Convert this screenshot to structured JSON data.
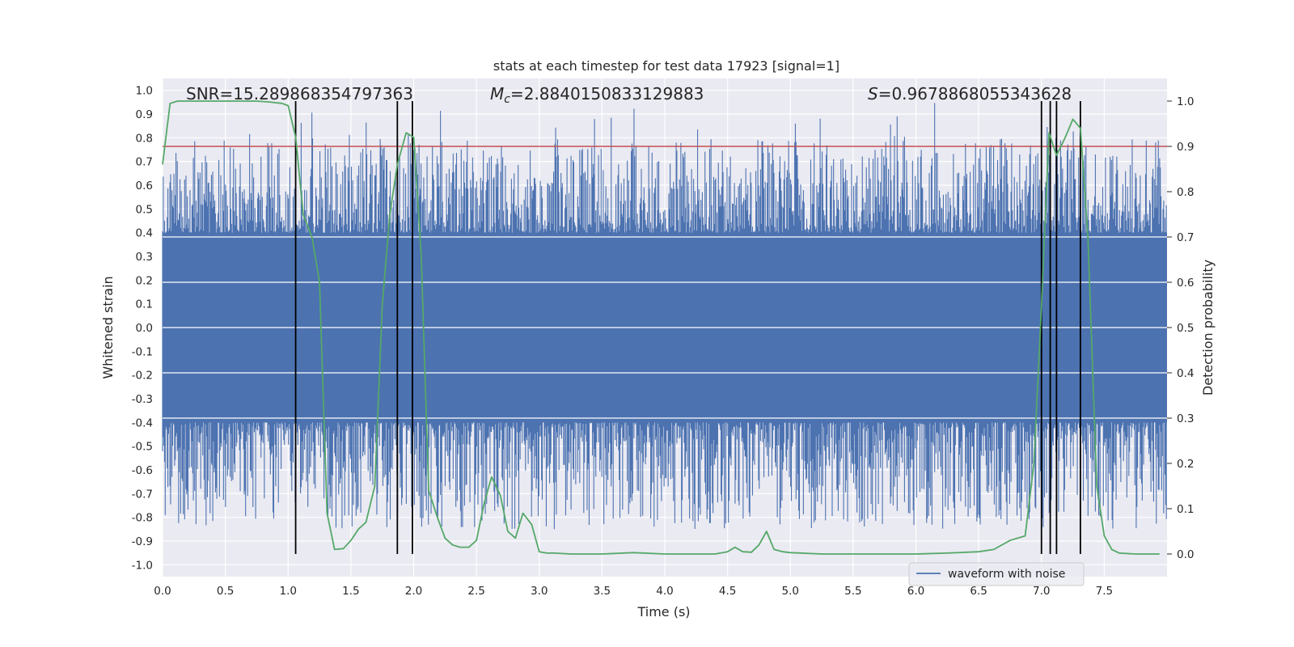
{
  "chart_data": {
    "type": "line",
    "title": "stats at each timestep for test data 17923 [signal=1]",
    "xlabel": "Time (s)",
    "ylabel": "Whitened strain",
    "y2label": "Detection probability",
    "xlim": [
      0.0,
      8.0
    ],
    "ylim": [
      -1.05,
      1.05
    ],
    "y2lim": [
      -0.05,
      1.05
    ],
    "xticks": [
      0.0,
      0.5,
      1.0,
      1.5,
      2.0,
      2.5,
      3.0,
      3.5,
      4.0,
      4.5,
      5.0,
      5.5,
      6.0,
      6.5,
      7.0,
      7.5
    ],
    "xtick_labels": [
      "0.0",
      "0.5",
      "1.0",
      "1.5",
      "2.0",
      "2.5",
      "3.0",
      "3.5",
      "4.0",
      "4.5",
      "5.0",
      "5.5",
      "6.0",
      "6.5",
      "7.0",
      "7.5"
    ],
    "yticks": [
      1.0,
      0.9,
      0.8,
      0.7,
      0.6,
      0.5,
      0.4,
      0.3,
      0.2,
      0.1,
      0.0,
      -0.1,
      -0.2,
      -0.3,
      -0.4,
      -0.5,
      -0.6,
      -0.7,
      -0.8,
      -0.9,
      -1.0
    ],
    "ytick_labels": [
      "1.0",
      "0.9",
      "0.8",
      "0.7",
      "0.6",
      "0.5",
      "0.4",
      "0.3",
      "0.2",
      "0.1",
      "0.0",
      "-0.1",
      "-0.2",
      "-0.3",
      "-0.4",
      "-0.5",
      "-0.6",
      "-0.7",
      "-0.8",
      "-0.9",
      "-1.0"
    ],
    "y2ticks": [
      1.0,
      0.9,
      0.8,
      0.7,
      0.6,
      0.5,
      0.4,
      0.3,
      0.2,
      0.1,
      0.0
    ],
    "y2tick_labels": [
      "1.0",
      "0.9",
      "0.8",
      "0.7",
      "0.6",
      "0.5",
      "0.4",
      "0.3",
      "0.2",
      "0.1",
      "0.0"
    ],
    "grid": true,
    "legend": {
      "label": "waveform with noise",
      "placement": "lower-right"
    },
    "annotations": {
      "snr": "SNR=15.289868354797363",
      "mc_symbol": "M",
      "mc_sub": "c",
      "mc_value": "=2.8840150833129883",
      "s_symbol": "S",
      "s_value": "=0.9678868055343628"
    },
    "threshold": {
      "value": 0.9,
      "axis": "right",
      "color": "#c44e52"
    },
    "event_lines": [
      1.06,
      1.87,
      1.99,
      7.0,
      7.07,
      7.12,
      7.31
    ],
    "series": [
      {
        "name": "waveform with noise",
        "axis": "left",
        "color": "#4c72b0",
        "core_amplitude": 0.4,
        "typical_peak": 0.55,
        "max_value": 1.0,
        "min_value": -0.92
      },
      {
        "name": "detection probability",
        "axis": "right",
        "color": "#55a868",
        "x": [
          0.0,
          0.06,
          0.12,
          0.25,
          0.5,
          0.75,
          0.85,
          0.95,
          1.0,
          1.06,
          1.12,
          1.19,
          1.25,
          1.31,
          1.37,
          1.44,
          1.5,
          1.56,
          1.62,
          1.69,
          1.75,
          1.81,
          1.87,
          1.94,
          2.0,
          2.06,
          2.12,
          2.19,
          2.25,
          2.31,
          2.37,
          2.44,
          2.5,
          2.56,
          2.62,
          2.69,
          2.75,
          2.81,
          2.87,
          2.94,
          3.0,
          3.06,
          3.12,
          3.25,
          3.5,
          3.75,
          4.0,
          4.25,
          4.4,
          4.5,
          4.56,
          4.62,
          4.69,
          4.75,
          4.81,
          4.87,
          4.94,
          5.0,
          5.25,
          5.5,
          6.0,
          6.25,
          6.5,
          6.62,
          6.75,
          6.87,
          6.94,
          7.0,
          7.06,
          7.12,
          7.19,
          7.25,
          7.31,
          7.37,
          7.44,
          7.5,
          7.56,
          7.62,
          7.75,
          7.94
        ],
        "y": [
          0.86,
          0.995,
          1.0,
          1.0,
          1.0,
          1.0,
          0.998,
          0.995,
          0.99,
          0.92,
          0.75,
          0.7,
          0.6,
          0.09,
          0.01,
          0.012,
          0.03,
          0.055,
          0.07,
          0.15,
          0.55,
          0.75,
          0.86,
          0.93,
          0.92,
          0.66,
          0.14,
          0.08,
          0.035,
          0.02,
          0.015,
          0.015,
          0.03,
          0.11,
          0.17,
          0.13,
          0.05,
          0.035,
          0.09,
          0.065,
          0.005,
          0.002,
          0.002,
          0.0,
          0.0,
          0.003,
          0.0,
          0.0,
          0.0,
          0.005,
          0.015,
          0.005,
          0.004,
          0.02,
          0.05,
          0.01,
          0.005,
          0.003,
          0.0,
          0.0,
          0.0,
          0.002,
          0.005,
          0.01,
          0.03,
          0.04,
          0.2,
          0.55,
          0.93,
          0.88,
          0.92,
          0.96,
          0.94,
          0.7,
          0.15,
          0.04,
          0.01,
          0.002,
          0.0,
          0.0
        ]
      }
    ]
  }
}
